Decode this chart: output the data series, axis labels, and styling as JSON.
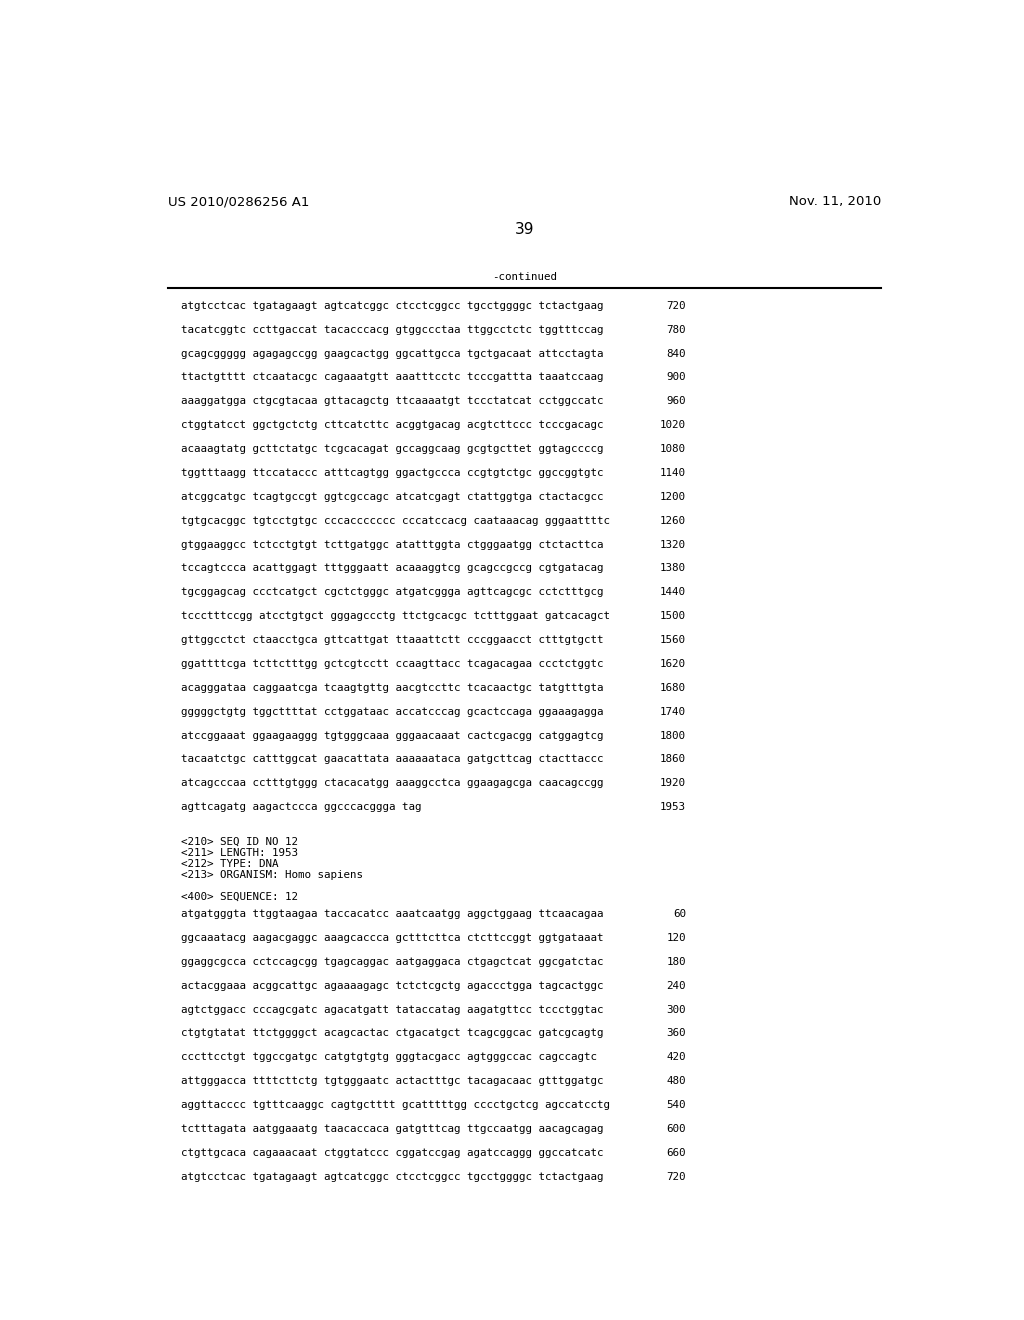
{
  "header_left": "US 2010/0286256 A1",
  "header_right": "Nov. 11, 2010",
  "page_number": "39",
  "continued_label": "-continued",
  "background_color": "#ffffff",
  "text_color": "#000000",
  "sequence_lines": [
    [
      "atgtcctcac tgatagaagt agtcatcggc ctcctcggcc tgcctggggc tctactgaag",
      "720"
    ],
    [
      "tacatcggtc ccttgaccat tacacccacg gtggccctaa ttggcctctc tggtttccag",
      "780"
    ],
    [
      "gcagcggggg agagagccgg gaagcactgg ggcattgcca tgctgacaat attcctagta",
      "840"
    ],
    [
      "ttactgtttt ctcaatacgc cagaaatgtt aaatttcctc tcccgattta taaatccaag",
      "900"
    ],
    [
      "aaaggatgga ctgcgtacaa gttacagctg ttcaaaatgt tccctatcat cctggccatc",
      "960"
    ],
    [
      "ctggtatcct ggctgctctg cttcatcttc acggtgacag acgtcttccc tcccgacagc",
      "1020"
    ],
    [
      "acaaagtatg gcttctatgc tcgcacagat gccaggcaag gcgtgcttet ggtagccccg",
      "1080"
    ],
    [
      "tggtttaagg ttccataccc atttcagtgg ggactgccca ccgtgtctgc ggccggtgtc",
      "1140"
    ],
    [
      "atcggcatgc tcagtgccgt ggtcgccagc atcatcgagt ctattggtga ctactacgcc",
      "1200"
    ],
    [
      "tgtgcacggc tgtcctgtgc cccaccccccc cccatccacg caataaacag gggaattttc",
      "1260"
    ],
    [
      "gtggaaggcc tctcctgtgt tcttgatggc atatttggta ctgggaatgg ctctacttca",
      "1320"
    ],
    [
      "tccagtccca acattggagt tttgggaatt acaaaggtcg gcagccgccg cgtgatacag",
      "1380"
    ],
    [
      "tgcggagcag ccctcatgct cgctctgggc atgatcggga agttcagcgc cctctttgcg",
      "1440"
    ],
    [
      "tccctttccgg atcctgtgct gggagccctg ttctgcacgc tctttggaat gatcacagct",
      "1500"
    ],
    [
      "gttggcctct ctaacctgca gttcattgat ttaaattctt cccggaacct ctttgtgctt",
      "1560"
    ],
    [
      "ggattttcga tcttctttgg gctcgtcctt ccaagttacc tcagacagaa ccctctggtc",
      "1620"
    ],
    [
      "acagggataa caggaatcga tcaagtgttg aacgtccttc tcacaactgc tatgtttgta",
      "1680"
    ],
    [
      "gggggctgtg tggcttttat cctggataac accatcccag gcactccaga ggaaagagga",
      "1740"
    ],
    [
      "atccggaaat ggaagaaggg tgtgggcaaa gggaacaaat cactcgacgg catggagtcg",
      "1800"
    ],
    [
      "tacaatctgc catttggcat gaacattata aaaaaataca gatgcttcag ctacttaccc",
      "1860"
    ],
    [
      "atcagcccaa cctttgtggg ctacacatgg aaaggcctca ggaagagcga caacagccgg",
      "1920"
    ],
    [
      "agttcagatg aagactccca ggcccacggga tag",
      "1953"
    ]
  ],
  "metadata_lines": [
    "<210> SEQ ID NO 12",
    "<211> LENGTH: 1953",
    "<212> TYPE: DNA",
    "<213> ORGANISM: Homo sapiens"
  ],
  "sequence400_label": "<400> SEQUENCE: 12",
  "sequence2_lines": [
    [
      "atgatgggta ttggtaagaa taccacatcc aaatcaatgg aggctggaag ttcaacagaa",
      "60"
    ],
    [
      "ggcaaatacg aagacgaggc aaagcaccca gctttcttca ctcttccggt ggtgataaat",
      "120"
    ],
    [
      "ggaggcgcca cctccagcgg tgagcaggac aatgaggaca ctgagctcat ggcgatctac",
      "180"
    ],
    [
      "actacggaaa acggcattgc agaaaagagc tctctcgctg agaccctgga tagcactggc",
      "240"
    ],
    [
      "agtctggacc cccagcgatc agacatgatt tataccatag aagatgttcc tccctggtac",
      "300"
    ],
    [
      "ctgtgtatat ttctggggct acagcactac ctgacatgct tcagcggcac gatcgcagtg",
      "360"
    ],
    [
      "cccttcctgt tggccgatgc catgtgtgtg gggtacgacc agtgggccac cagccagtc",
      "420"
    ],
    [
      "attgggacca ttttcttctg tgtgggaatc actactttgc tacagacaac gtttggatgc",
      "480"
    ],
    [
      "aggttacccc tgtttcaaggc cagtgctttt gcatttttgg cccctgctcg agccatcctg",
      "540"
    ],
    [
      "tctttagata aatggaaatg taacaccaca gatgtttcag ttgccaatgg aacagcagag",
      "600"
    ],
    [
      "ctgttgcaca cagaaacaat ctggtatccc cggatccgag agatccaggg ggccatcatc",
      "660"
    ],
    [
      "atgtcctcac tgatagaagt agtcatcggc ctcctcggcc tgcctggggc tctactgaag",
      "720"
    ]
  ]
}
